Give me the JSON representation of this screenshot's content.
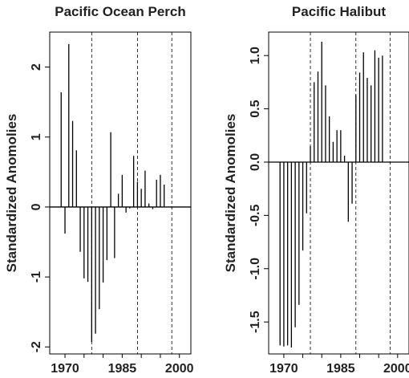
{
  "chart_data": [
    {
      "type": "bar",
      "title": "Pacific Ocean Perch",
      "xlabel": "",
      "ylabel": "Standardized Anomolies",
      "x_ticks": [
        1970,
        1985,
        2000
      ],
      "x_tick_labels": [
        "1970",
        "1985",
        "2000"
      ],
      "y_ticks": [
        -2,
        -1,
        0,
        1,
        2
      ],
      "y_tick_labels": [
        "-2",
        "-1",
        "0",
        "1",
        "2"
      ],
      "xlim": [
        1966,
        2003
      ],
      "ylim": [
        -2.1,
        2.5
      ],
      "reference_lines_x": [
        1977,
        1989,
        1998
      ],
      "grid": false,
      "x": [
        1969,
        1970,
        1971,
        1972,
        1973,
        1974,
        1975,
        1976,
        1977,
        1978,
        1979,
        1980,
        1981,
        1982,
        1983,
        1984,
        1985,
        1986,
        1987,
        1988,
        1989,
        1990,
        1991,
        1992,
        1993,
        1994,
        1995,
        1996,
        1997
      ],
      "values": [
        1.64,
        -0.38,
        2.33,
        1.23,
        0.81,
        -0.64,
        -1.02,
        -1.07,
        -1.93,
        -1.81,
        -1.46,
        -1.08,
        -0.76,
        1.07,
        -0.73,
        0.19,
        0.46,
        -0.08,
        -0.02,
        0.73,
        0.36,
        0.26,
        0.52,
        0.05,
        -0.03,
        0.39,
        0.46,
        0.32,
        0
      ]
    },
    {
      "type": "bar",
      "title": "Pacific Halibut",
      "xlabel": "",
      "ylabel": "Standardized Anomolies",
      "x_ticks": [
        1970,
        1985,
        2000
      ],
      "x_tick_labels": [
        "1970",
        "1985",
        "2000"
      ],
      "y_ticks": [
        -1.5,
        -1.0,
        -0.5,
        0.0,
        0.5,
        1.0
      ],
      "y_tick_labels": [
        "-1.5",
        "-1.0",
        "-0.5",
        "0.0",
        "0.5",
        "1.0"
      ],
      "xlim": [
        1966,
        2003
      ],
      "ylim": [
        -1.8,
        1.22
      ],
      "reference_lines_x": [
        1977,
        1989,
        1998
      ],
      "grid": false,
      "x": [
        1969,
        1970,
        1971,
        1972,
        1973,
        1974,
        1975,
        1976,
        1977,
        1978,
        1979,
        1980,
        1981,
        1982,
        1983,
        1984,
        1985,
        1986,
        1987,
        1988,
        1989,
        1990,
        1991,
        1992,
        1993,
        1994,
        1995,
        1996,
        1997
      ],
      "values": [
        -1.72,
        -1.73,
        -1.72,
        -1.74,
        -1.55,
        -1.34,
        -0.83,
        -0.48,
        0.15,
        0.75,
        0.85,
        1.13,
        0.72,
        0.43,
        0.19,
        0.3,
        0.3,
        0.06,
        -0.56,
        -0.39,
        0.63,
        0.84,
        1.03,
        0.79,
        0.72,
        1.05,
        0.98,
        1.0,
        0
      ]
    }
  ]
}
